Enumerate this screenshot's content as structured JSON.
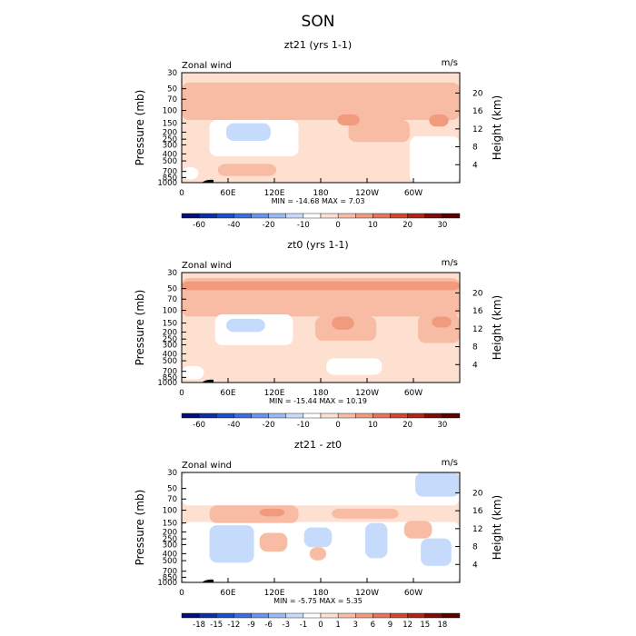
{
  "page_title": "SON",
  "chart_data": [
    {
      "type": "heatmap",
      "title": "zt21 (yrs 1-1)",
      "left_label": "Zonal wind",
      "right_label": "m/s",
      "ylabel": "Pressure (mb)",
      "y2label": "Height (km)",
      "xticks": [
        "0",
        "60E",
        "120E",
        "180",
        "120W",
        "60W"
      ],
      "yticks": [
        "30",
        "50",
        "70",
        "100",
        "150",
        "200",
        "250",
        "300",
        "400",
        "500",
        "700",
        "850",
        "1000"
      ],
      "y2ticks": [
        "20",
        "16",
        "12",
        "8",
        "4"
      ],
      "stats": "MIN = -14.68   MAX =    7.03",
      "min": -14.68,
      "max": 7.03,
      "colorbar": {
        "labels": [
          "-60",
          "-40",
          "-20",
          "-10",
          "0",
          "10",
          "20",
          "30"
        ],
        "colors": [
          "#040f7a",
          "#0a2fa8",
          "#1a4fcf",
          "#3a6ee0",
          "#6a93ee",
          "#9ab8f6",
          "#c6dbfc",
          "#ffffff",
          "#fde0d0",
          "#f8bca4",
          "#f19a7e",
          "#e8735a",
          "#d4472e",
          "#b32414",
          "#800a05",
          "#5e0000"
        ]
      },
      "fields": [
        {
          "level": 0,
          "regions": [
            [
              0,
              0,
              1,
              0.09
            ]
          ]
        },
        {
          "level": 1,
          "regions": [
            [
              0,
              0.09,
              1,
              0.43
            ],
            [
              0.6,
              0.43,
              0.82,
              0.63
            ]
          ]
        },
        {
          "level": 2,
          "regions": [
            [
              0.56,
              0.38,
              0.64,
              0.48
            ],
            [
              0.89,
              0.38,
              0.96,
              0.49
            ]
          ]
        },
        {
          "level": -1,
          "regions": [
            [
              0.1,
              0.43,
              0.42,
              0.76
            ],
            [
              0.82,
              0.58,
              1,
              1
            ],
            [
              0,
              0.86,
              0.06,
              0.97
            ]
          ]
        },
        {
          "level": -2,
          "regions": [
            [
              0.16,
              0.46,
              0.32,
              0.62
            ]
          ]
        },
        {
          "level": 1,
          "regions": [
            [
              0.13,
              0.83,
              0.34,
              0.94
            ]
          ]
        }
      ]
    },
    {
      "type": "heatmap",
      "title": "zt0 (yrs 1-1)",
      "left_label": "Zonal wind",
      "right_label": "m/s",
      "ylabel": "Pressure (mb)",
      "y2label": "Height (km)",
      "xticks": [
        "0",
        "60E",
        "120E",
        "180",
        "120W",
        "60W"
      ],
      "yticks": [
        "30",
        "50",
        "70",
        "100",
        "150",
        "200",
        "250",
        "300",
        "400",
        "500",
        "700",
        "850",
        "1000"
      ],
      "y2ticks": [
        "20",
        "16",
        "12",
        "8",
        "4"
      ],
      "stats": "MIN = -15.44   MAX =   10.19",
      "min": -15.44,
      "max": 10.19,
      "colorbar": {
        "labels": [
          "-60",
          "-40",
          "-20",
          "-10",
          "0",
          "10",
          "20",
          "30"
        ],
        "colors": [
          "#040f7a",
          "#0a2fa8",
          "#1a4fcf",
          "#3a6ee0",
          "#6a93ee",
          "#9ab8f6",
          "#c6dbfc",
          "#ffffff",
          "#fde0d0",
          "#f8bca4",
          "#f19a7e",
          "#e8735a",
          "#d4472e",
          "#b32414",
          "#800a05",
          "#5e0000"
        ]
      },
      "fields": [
        {
          "level": 1,
          "regions": [
            [
              0,
              0.05,
              1,
              0.4
            ],
            [
              0.48,
              0.4,
              0.7,
              0.62
            ],
            [
              0.85,
              0.38,
              1,
              0.64
            ]
          ]
        },
        {
          "level": 2,
          "regions": [
            [
              0,
              0.08,
              1,
              0.16
            ],
            [
              0.54,
              0.4,
              0.62,
              0.52
            ],
            [
              0.9,
              0.4,
              0.97,
              0.5
            ]
          ]
        },
        {
          "level": -1,
          "regions": [
            [
              0.12,
              0.38,
              0.4,
              0.66
            ],
            [
              0.52,
              0.78,
              0.72,
              0.93
            ],
            [
              0,
              0.85,
              0.08,
              0.97
            ]
          ]
        },
        {
          "level": -2,
          "regions": [
            [
              0.16,
              0.42,
              0.3,
              0.54
            ]
          ]
        }
      ]
    },
    {
      "type": "heatmap",
      "title": "zt21 - zt0",
      "left_label": "Zonal wind",
      "right_label": "m/s",
      "ylabel": "Pressure (mb)",
      "y2label": "Height (km)",
      "xticks": [
        "0",
        "60E",
        "120E",
        "180",
        "120W",
        "60W"
      ],
      "yticks": [
        "30",
        "50",
        "70",
        "100",
        "150",
        "200",
        "250",
        "300",
        "400",
        "500",
        "700",
        "850",
        "1000"
      ],
      "y2ticks": [
        "20",
        "16",
        "12",
        "8",
        "4"
      ],
      "stats": "MIN = -5.75   MAX =   5.35",
      "min": -5.75,
      "max": 5.35,
      "colorbar": {
        "labels": [
          "-18",
          "-15",
          "-12",
          "-9",
          "-6",
          "-3",
          "-1",
          "0",
          "1",
          "3",
          "6",
          "9",
          "12",
          "15",
          "18"
        ],
        "colors": [
          "#040f7a",
          "#0a2fa8",
          "#1a4fcf",
          "#3a6ee0",
          "#6a93ee",
          "#9ab8f6",
          "#c6dbfc",
          "#ffffff",
          "#fde0d0",
          "#f8bca4",
          "#f19a7e",
          "#e8735a",
          "#d4472e",
          "#b32414",
          "#800a05",
          "#5e0000"
        ]
      },
      "fields": [
        {
          "level": -1,
          "regions": [
            [
              0,
              0,
              1,
              0.3
            ],
            [
              0,
              0.45,
              1,
              1
            ]
          ]
        },
        {
          "level": -2,
          "regions": [
            [
              0.84,
              0,
              1,
              0.22
            ],
            [
              0.1,
              0.48,
              0.26,
              0.82
            ],
            [
              0.44,
              0.5,
              0.54,
              0.68
            ],
            [
              0.66,
              0.46,
              0.74,
              0.78
            ],
            [
              0.86,
              0.6,
              0.97,
              0.85
            ]
          ]
        },
        {
          "level": 1,
          "regions": [
            [
              0.1,
              0.3,
              0.42,
              0.46
            ],
            [
              0.54,
              0.33,
              0.78,
              0.42
            ],
            [
              0.28,
              0.55,
              0.38,
              0.72
            ],
            [
              0.46,
              0.68,
              0.52,
              0.8
            ],
            [
              0.8,
              0.44,
              0.9,
              0.6
            ]
          ]
        },
        {
          "level": 2,
          "regions": [
            [
              0.28,
              0.33,
              0.37,
              0.4
            ]
          ]
        }
      ]
    }
  ]
}
